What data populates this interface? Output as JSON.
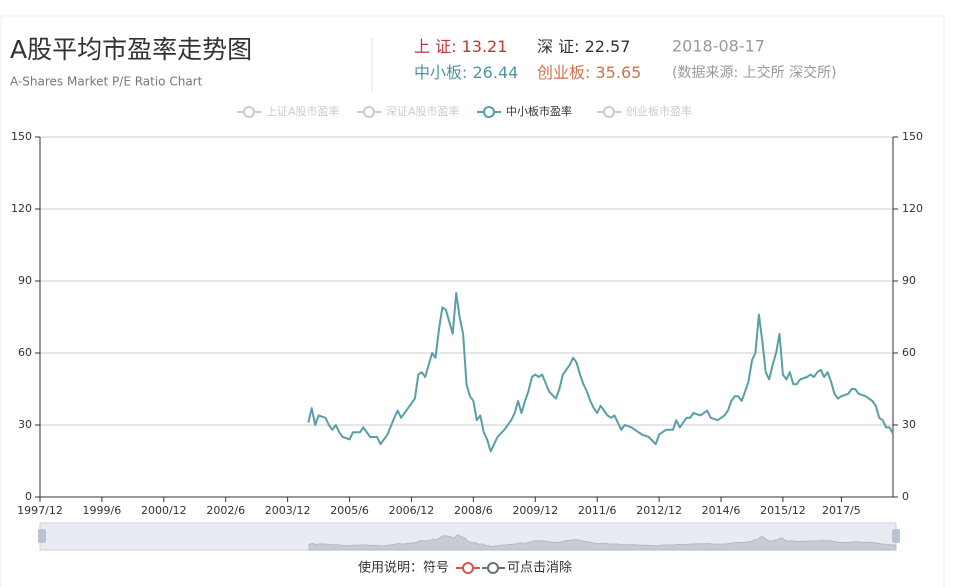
{
  "header": {
    "title": "A股平均市盈率走势图",
    "subtitle": "A-Shares Market P/E Ratio Chart",
    "stats": [
      {
        "label": "上 证:",
        "value": 13.21,
        "color": "#c23531"
      },
      {
        "label": "深 证:",
        "value": 22.57,
        "color": "#333333"
      },
      {
        "label": "中小板:",
        "value": 26.44,
        "color": "#4f96a0"
      },
      {
        "label": "创业板:",
        "value": 35.65,
        "color": "#d0724f"
      }
    ],
    "date": "2018-08-17",
    "source": "(数据来源: 上交所 深交所)"
  },
  "chart_data": {
    "type": "line",
    "legend": [
      {
        "name": "上证A股市盈率",
        "active": false
      },
      {
        "name": "深证A股市盈率",
        "active": false
      },
      {
        "name": "中小板市盈率",
        "active": true
      },
      {
        "name": "创业板市盈率",
        "active": false
      }
    ],
    "inactive_color": "#cccccc",
    "x": [
      "2004/6",
      "2004/7",
      "2004/8",
      "2004/9",
      "2004/11",
      "2004/12",
      "2005/1",
      "2005/2",
      "2005/3",
      "2005/4",
      "2005/6",
      "2005/7",
      "2005/9",
      "2005/10",
      "2005/12",
      "2006/2",
      "2006/3",
      "2006/5",
      "2006/7",
      "2006/8",
      "2006/9",
      "2006/11",
      "2007/1",
      "2007/2",
      "2007/3",
      "2007/4",
      "2007/6",
      "2007/7",
      "2007/8",
      "2007/9",
      "2007/10",
      "2007/12",
      "2008/1",
      "2008/2",
      "2008/3",
      "2008/4",
      "2008/5",
      "2008/6",
      "2008/7",
      "2008/8",
      "2008/9",
      "2008/10",
      "2008/11",
      "2009/1",
      "2009/3",
      "2009/5",
      "2009/6",
      "2009/7",
      "2009/8",
      "2009/9",
      "2009/10",
      "2009/11",
      "2009/12",
      "2010/1",
      "2010/2",
      "2010/4",
      "2010/6",
      "2010/7",
      "2010/8",
      "2010/10",
      "2010/11",
      "2010/12",
      "2011/1",
      "2011/2",
      "2011/3",
      "2011/4",
      "2011/5",
      "2011/6",
      "2011/7",
      "2011/8",
      "2011/9",
      "2011/10",
      "2011/11",
      "2012/1",
      "2012/2",
      "2012/4",
      "2012/5",
      "2012/7",
      "2012/9",
      "2012/11",
      "2012/12",
      "2013/2",
      "2013/4",
      "2013/5",
      "2013/6",
      "2013/8",
      "2013/9",
      "2013/10",
      "2013/12",
      "2014/2",
      "2014/3",
      "2014/5",
      "2014/7",
      "2014/8",
      "2014/9",
      "2014/10",
      "2014/11",
      "2014/12",
      "2015/2",
      "2015/3",
      "2015/4",
      "2015/5",
      "2015/6",
      "2015/7",
      "2015/8",
      "2015/9",
      "2015/10",
      "2015/11",
      "2015/12",
      "2016/1",
      "2016/2",
      "2016/3",
      "2016/4",
      "2016/5",
      "2016/7",
      "2016/8",
      "2016/9",
      "2016/10",
      "2016/11",
      "2016/12",
      "2017/1",
      "2017/2",
      "2017/3",
      "2017/4",
      "2017/5",
      "2017/7",
      "2017/8",
      "2017/9",
      "2017/10",
      "2017/12",
      "2018/1",
      "2018/2",
      "2018/3",
      "2018/4",
      "2018/5",
      "2018/6",
      "2018/7",
      "2018/8"
    ],
    "series": [
      {
        "name": "中小板市盈率",
        "color": "#5a9ea6",
        "values": [
          31,
          37,
          30,
          34,
          33,
          30,
          28,
          30,
          27,
          25,
          24,
          27,
          27,
          29,
          25,
          25,
          22,
          26,
          33,
          36,
          33,
          37,
          41,
          51,
          52,
          50,
          60,
          58,
          70,
          79,
          78,
          68,
          85,
          75,
          68,
          47,
          42,
          40,
          32,
          34,
          27,
          24,
          19,
          25,
          28,
          32,
          35,
          40,
          35,
          40,
          44,
          50,
          51,
          50,
          51,
          44,
          41,
          45,
          51,
          55,
          58,
          56,
          51,
          47,
          44,
          40,
          37,
          35,
          38,
          36,
          34,
          33,
          34,
          28,
          30,
          29,
          28,
          26,
          25,
          22,
          26,
          28,
          28,
          32,
          29,
          33,
          33,
          35,
          34,
          36,
          33,
          32,
          34,
          36,
          40,
          42,
          42,
          40,
          48,
          57,
          60,
          76,
          65,
          52,
          49,
          55,
          60,
          68,
          51,
          49,
          52,
          47,
          47,
          49,
          50,
          51,
          50,
          52,
          53,
          50,
          52,
          48,
          43,
          41,
          42,
          43,
          45,
          45,
          43,
          42,
          41,
          40,
          38,
          33,
          32,
          29,
          29,
          26.44
        ]
      }
    ],
    "xlim": [
      "1997/12",
      "2018/8"
    ],
    "xticks": [
      "1997/12",
      "1999/6",
      "2000/12",
      "2002/6",
      "2003/12",
      "2005/6",
      "2006/12",
      "2008/6",
      "2009/12",
      "2011/6",
      "2012/12",
      "2014/6",
      "2015/12",
      "2017/5"
    ],
    "ylim": [
      0,
      150
    ],
    "yticks": [
      0,
      30,
      60,
      90,
      120,
      150
    ],
    "y2lim": [
      0,
      150
    ],
    "y2ticks": [
      0,
      30,
      60,
      90,
      120,
      150
    ],
    "grid": true
  },
  "footer": {
    "note": "使用说明：符号",
    "note_end": "可点击消除"
  }
}
